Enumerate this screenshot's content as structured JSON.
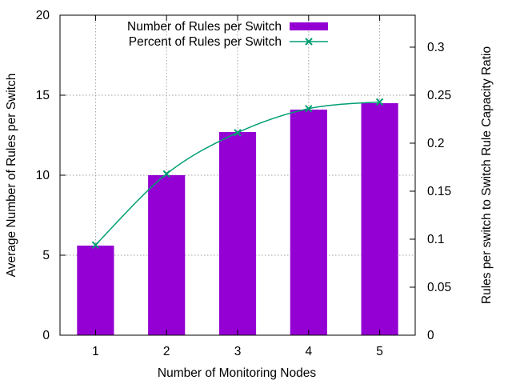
{
  "chart_data": {
    "type": "bar",
    "title": "",
    "xlabel": "Number of Monitoring Nodes",
    "ylabel": "Average Number of Rules per Switch",
    "y2label": "Rules per switch to Switch Rule Capacity Ratio",
    "categories": [
      "1",
      "2",
      "3",
      "4",
      "5"
    ],
    "ylim": [
      0,
      20
    ],
    "y2lim": [
      0,
      0.3333
    ],
    "yticks": [
      "0",
      "5",
      "10",
      "15",
      "20"
    ],
    "y2ticks": [
      "0",
      "0.05",
      "0.1",
      "0.15",
      "0.2",
      "0.25",
      "0.3"
    ],
    "grid": true,
    "legend_position": "top-center",
    "series": [
      {
        "name": "Number of Rules per Switch",
        "type": "bar",
        "axis": "left",
        "color": "#9400d3",
        "values": [
          5.6,
          10.0,
          12.7,
          14.1,
          14.5
        ]
      },
      {
        "name": "Percent of Rules per Switch",
        "type": "line",
        "axis": "right",
        "color": "#009e73",
        "marker": "x",
        "values": [
          0.094,
          0.168,
          0.211,
          0.236,
          0.243
        ]
      }
    ]
  }
}
